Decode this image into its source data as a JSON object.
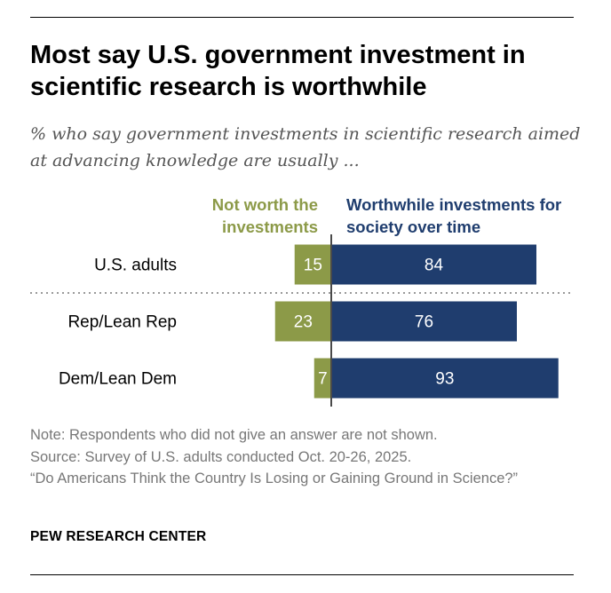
{
  "title": "Most say U.S. government investment in scientific research is worthwhile",
  "subtitle": "% who say government investments in scientific research aimed at advancing knowledge are usually ...",
  "colors": {
    "negative": "#8c9a48",
    "positive": "#1f3d6e",
    "axis": "#4a4a4a",
    "note": "#777777"
  },
  "chart_data": {
    "type": "bar",
    "orientation": "horizontal-diverging",
    "categories": [
      "U.S. adults",
      "Rep/Lean Rep",
      "Dem/Lean Dem"
    ],
    "series": [
      {
        "name": "Not worth the investments",
        "values": [
          15,
          23,
          7
        ]
      },
      {
        "name": "Worthwhile investments for society over time",
        "values": [
          84,
          76,
          93
        ]
      }
    ],
    "legend": {
      "negative_label": "Not worth the investments",
      "positive_label": "Worthwhile investments for society over time"
    }
  },
  "note": {
    "line1": "Note: Respondents who did not give an answer are not shown.",
    "line2": "Source: Survey of U.S. adults conducted Oct. 20-26, 2025.",
    "line3": "“Do Americans Think the Country Is Losing or Gaining Ground in Science?”"
  },
  "footer": "PEW RESEARCH CENTER"
}
